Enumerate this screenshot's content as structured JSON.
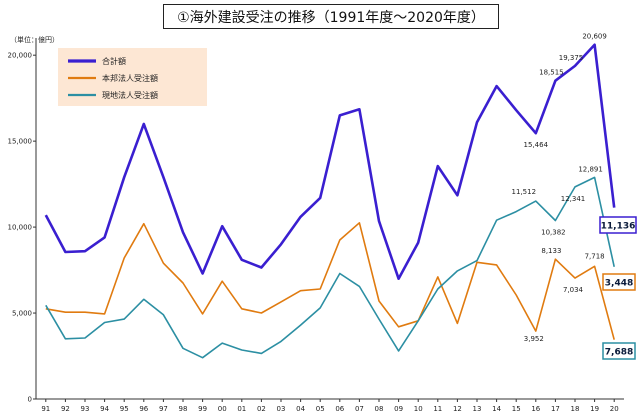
{
  "chart_data": {
    "type": "line",
    "title": "①海外建設受注の推移（1991年度～2020年度）",
    "unit_label": "（単位：億円）",
    "categories": [
      "91",
      "92",
      "93",
      "94",
      "95",
      "96",
      "97",
      "98",
      "99",
      "00",
      "01",
      "02",
      "03",
      "04",
      "05",
      "06",
      "07",
      "08",
      "09",
      "10",
      "11",
      "12",
      "13",
      "14",
      "15",
      "16",
      "17",
      "18",
      "19",
      "20"
    ],
    "ylim": [
      0,
      21000
    ],
    "yticks": [
      0,
      5000,
      10000,
      15000,
      20000
    ],
    "ytick_labels": [
      "0",
      "5,000",
      "10,000",
      "15,000",
      "20,000"
    ],
    "grid": false,
    "legend_position": "top-left",
    "series": [
      {
        "name": "合計額",
        "color": "#3a1fd0",
        "values": [
          10700,
          8550,
          8600,
          9400,
          12900,
          16000,
          12900,
          9700,
          7300,
          10050,
          8100,
          7650,
          9000,
          10600,
          11700,
          16500,
          16850,
          10350,
          7000,
          9100,
          13550,
          11850,
          16100,
          18200,
          16800,
          15464,
          18515,
          19375,
          20609,
          11136
        ],
        "labels": {
          "25": "15,464",
          "26": "18,515",
          "27": "19,375",
          "28": "20,609"
        },
        "end_label": "11,136"
      },
      {
        "name": "本邦法人受注額",
        "color": "#e07b10",
        "values": [
          5250,
          5050,
          5050,
          4950,
          8200,
          10200,
          7900,
          6750,
          4950,
          6850,
          5250,
          5000,
          5650,
          6300,
          6400,
          9250,
          10250,
          5700,
          4200,
          4550,
          7100,
          4400,
          7950,
          7800,
          6050,
          3952,
          8133,
          7034,
          7718,
          3448
        ],
        "labels": {
          "25": "3,952",
          "26": "8,133",
          "27": "7,034",
          "28": "7,718"
        },
        "end_label": "3,448"
      },
      {
        "name": "現地法人受注額",
        "color": "#2c8fa3",
        "values": [
          5450,
          3500,
          3550,
          4450,
          4650,
          5800,
          4900,
          2950,
          2400,
          3250,
          2850,
          2650,
          3350,
          4300,
          5300,
          7300,
          6550,
          4650,
          2800,
          4550,
          6400,
          7450,
          8050,
          10400,
          10900,
          11512,
          10382,
          12341,
          12891,
          7688
        ],
        "labels": {
          "25": "11,512",
          "26": "10,382",
          "27": "12,341",
          "28": "12,891"
        },
        "end_label": "7,688"
      }
    ]
  }
}
